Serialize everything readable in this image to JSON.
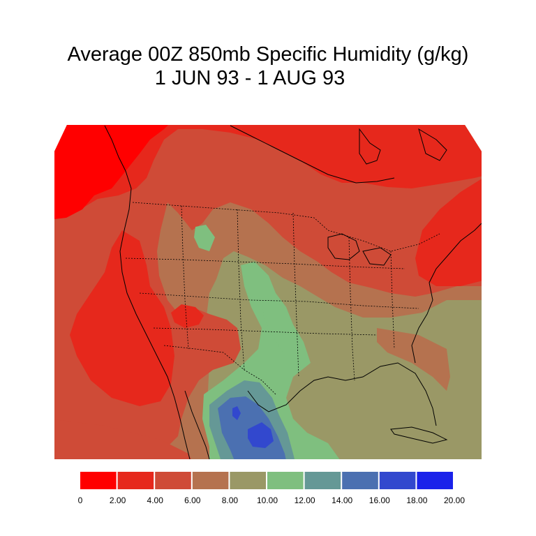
{
  "title": {
    "line1": "Average 00Z 850mb Specific Humidity (g/kg)",
    "line2": "1 JUN 93 - 1 AUG 93"
  },
  "legend": {
    "bins": [
      {
        "color": "#ff0000"
      },
      {
        "color": "#e6281c"
      },
      {
        "color": "#cf4b37"
      },
      {
        "color": "#b5724f"
      },
      {
        "color": "#9a9866"
      },
      {
        "color": "#7fbf7f"
      },
      {
        "color": "#659896"
      },
      {
        "color": "#4b70b1"
      },
      {
        "color": "#3248ce"
      },
      {
        "color": "#1a22ea"
      }
    ],
    "labels": [
      "0",
      "2.00",
      "4.00",
      "6.00",
      "8.00",
      "10.00",
      "12.00",
      "14.00",
      "16.00",
      "18.00",
      "20.00"
    ]
  }
}
